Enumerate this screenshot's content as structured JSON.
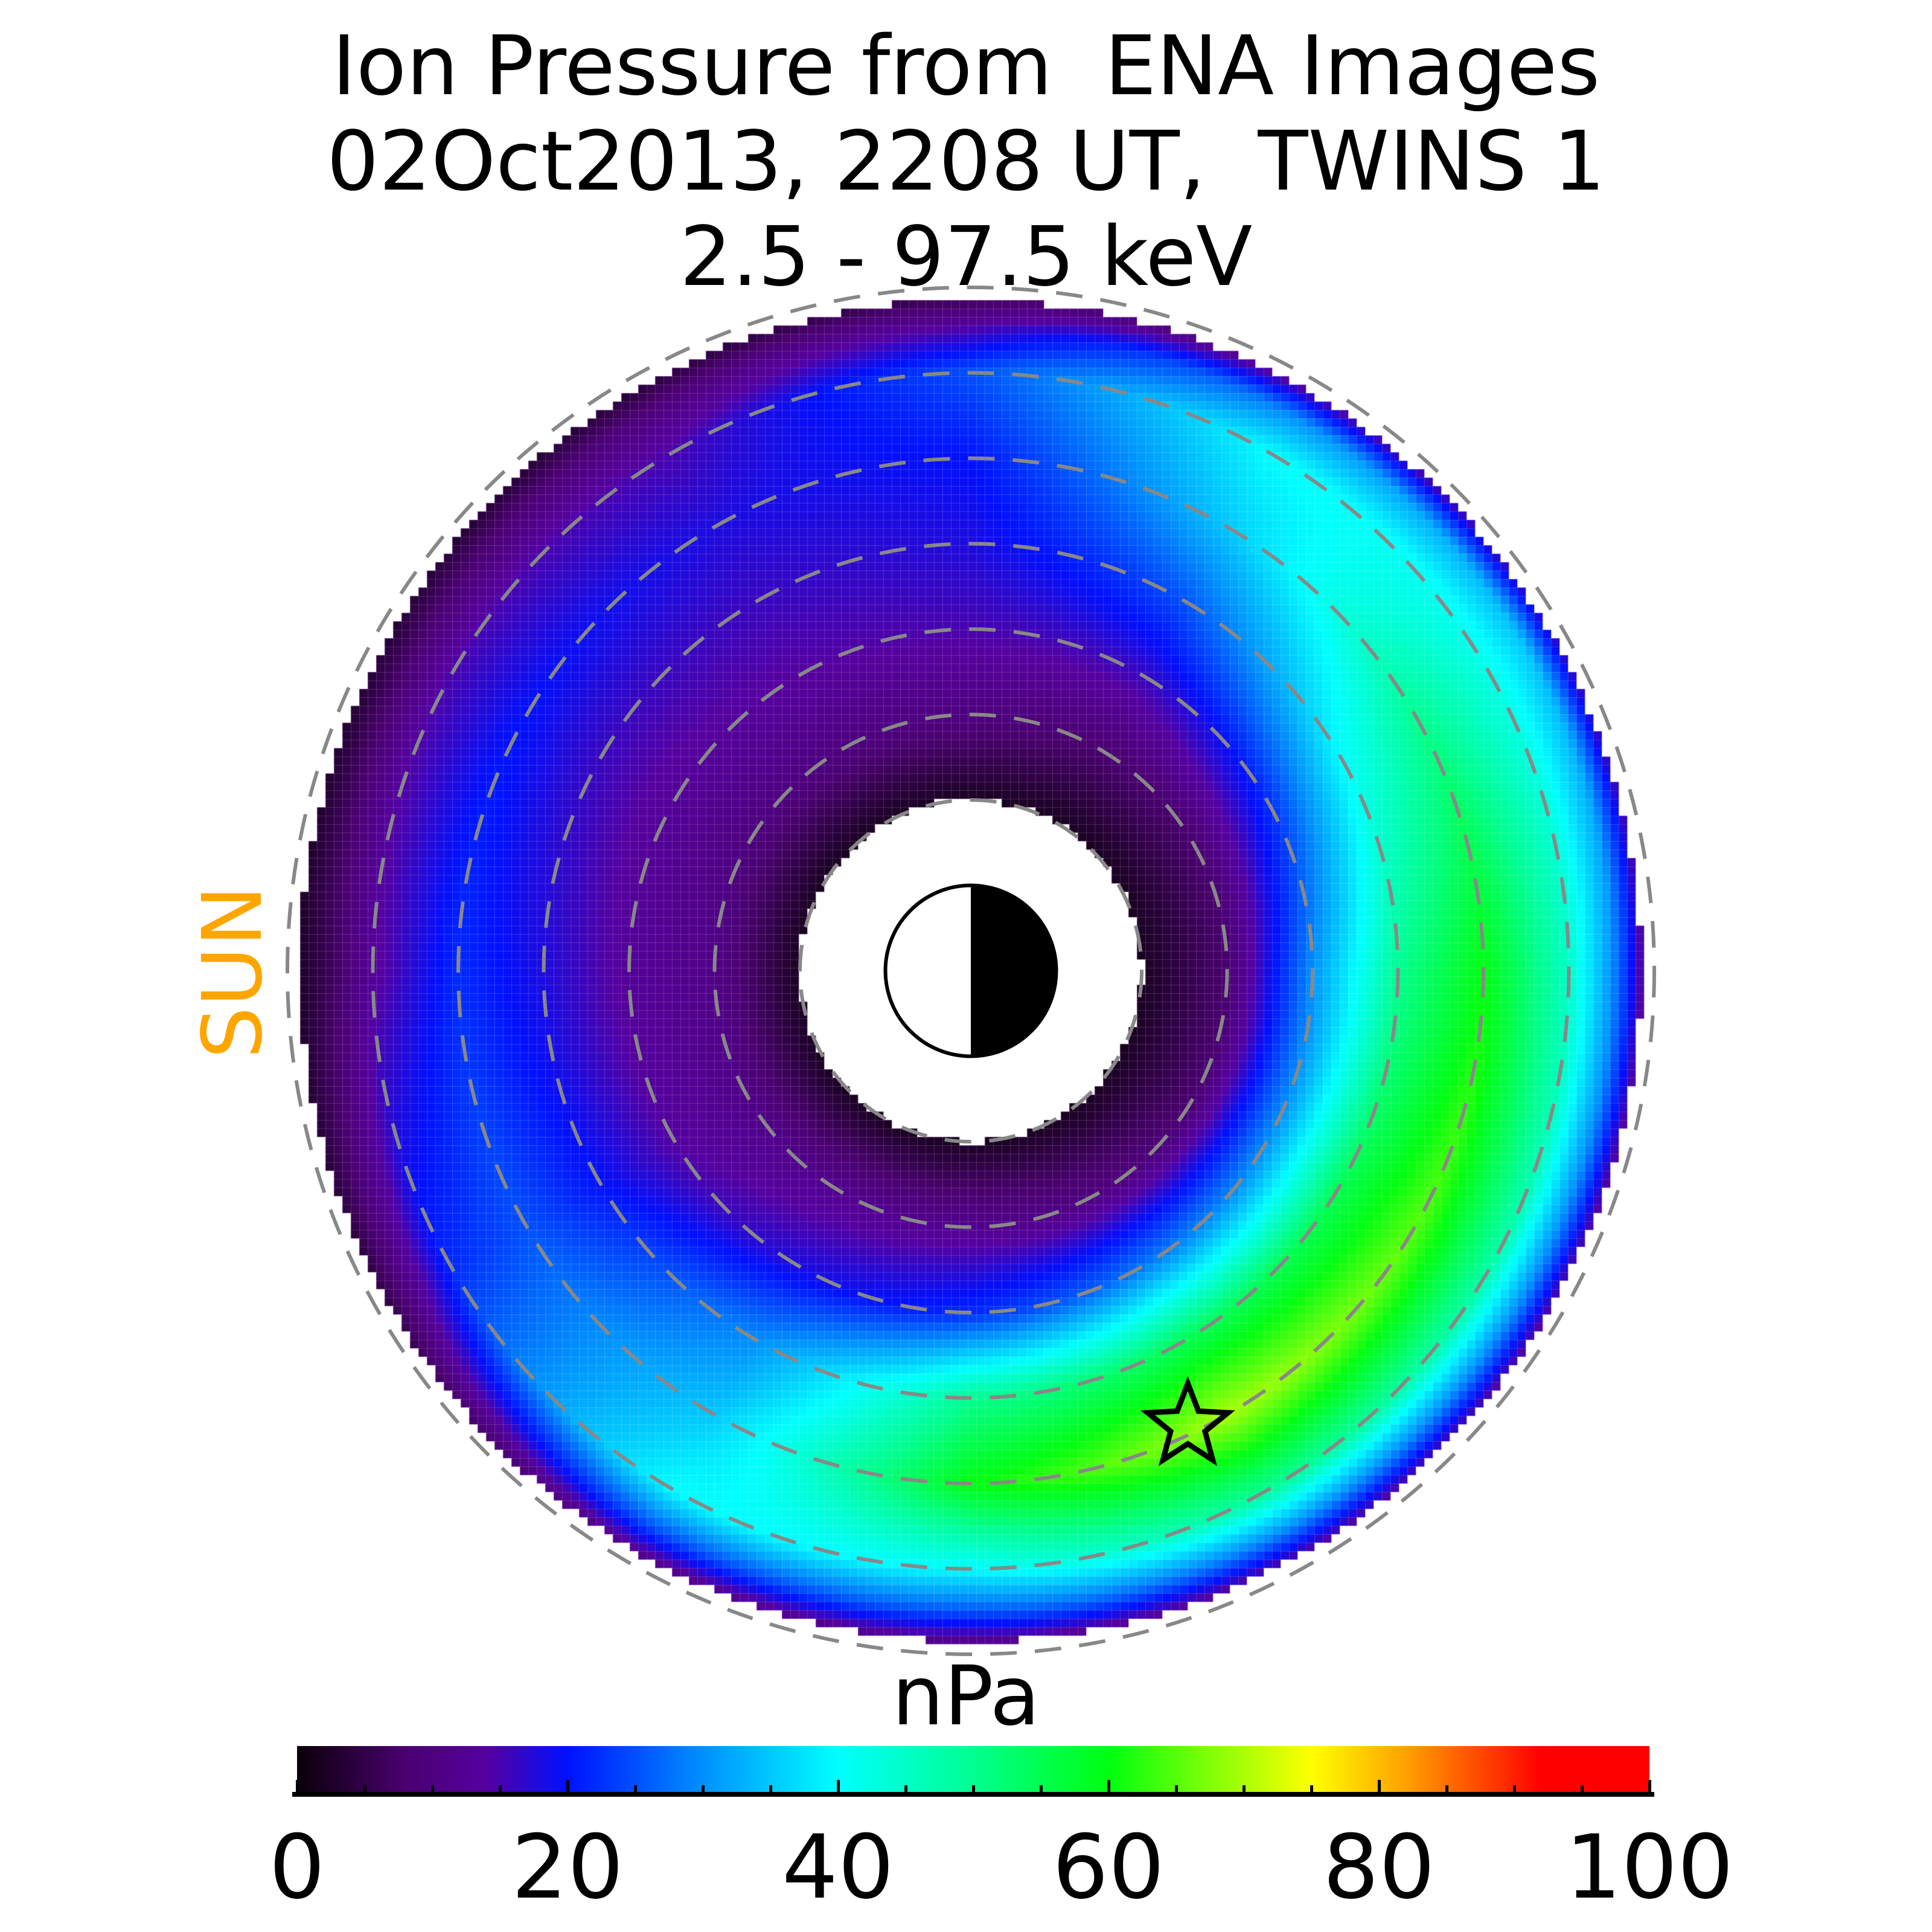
{
  "chart_data": {
    "type": "heatmap",
    "projection": "polar equatorial plane, Sun to the left",
    "title": [
      "Ion Pressure from  ENA Images",
      "02Oct2013, 2208 UT,  TWINS 1",
      "2.5 - 97.5 keV"
    ],
    "sun_label": "SUN",
    "colorbar": {
      "label": "nPa",
      "range": [
        0,
        100
      ],
      "ticks": [
        0,
        20,
        40,
        60,
        80,
        100
      ],
      "tick_labels": [
        "0",
        "20",
        "40",
        "60",
        "80",
        "100"
      ],
      "minor_step": 5,
      "colormap": [
        {
          "v": 0,
          "c": "#0a0008"
        },
        {
          "v": 8,
          "c": "#4a0070"
        },
        {
          "v": 14,
          "c": "#5500a0"
        },
        {
          "v": 20,
          "c": "#0010ff"
        },
        {
          "v": 30,
          "c": "#0090ff"
        },
        {
          "v": 40,
          "c": "#00ffff"
        },
        {
          "v": 50,
          "c": "#00ff90"
        },
        {
          "v": 60,
          "c": "#00ff10"
        },
        {
          "v": 75,
          "c": "#ffff00"
        },
        {
          "v": 82,
          "c": "#ffa000"
        },
        {
          "v": 92,
          "c": "#ff0000"
        },
        {
          "v": 100,
          "c": "#ff0000"
        }
      ]
    },
    "dashed_circles_Re": [
      2,
      3,
      4,
      5,
      6,
      7,
      8
    ],
    "data_radius_Re": [
      2.0,
      7.85
    ],
    "mlt": [
      0,
      2,
      4,
      6,
      8,
      10,
      12,
      14,
      16,
      18,
      20,
      22
    ],
    "L": [
      2,
      3,
      4,
      5,
      6,
      7,
      7.5,
      7.9
    ],
    "pressure_nPa": [
      [
        2,
        8,
        30,
        50,
        60,
        45,
        30,
        12
      ],
      [
        2,
        8,
        22,
        40,
        50,
        42,
        35,
        15
      ],
      [
        2,
        8,
        16,
        25,
        35,
        40,
        30,
        12
      ],
      [
        2,
        10,
        15,
        18,
        20,
        25,
        15,
        5
      ],
      [
        2,
        10,
        14,
        16,
        18,
        15,
        10,
        3
      ],
      [
        2,
        10,
        13,
        16,
        20,
        15,
        8,
        3
      ],
      [
        2,
        11,
        13,
        18,
        22,
        13,
        6,
        2
      ],
      [
        2,
        11,
        14,
        20,
        25,
        22,
        12,
        4
      ],
      [
        2,
        12,
        18,
        30,
        35,
        40,
        25,
        10
      ],
      [
        2,
        12,
        22,
        50,
        60,
        40,
        25,
        10
      ],
      [
        2,
        10,
        28,
        55,
        70,
        50,
        30,
        12
      ],
      [
        2,
        8,
        30,
        55,
        65,
        48,
        30,
        12
      ]
    ],
    "marker": {
      "type": "star",
      "mlt": 19.7,
      "L": 5.9
    }
  }
}
